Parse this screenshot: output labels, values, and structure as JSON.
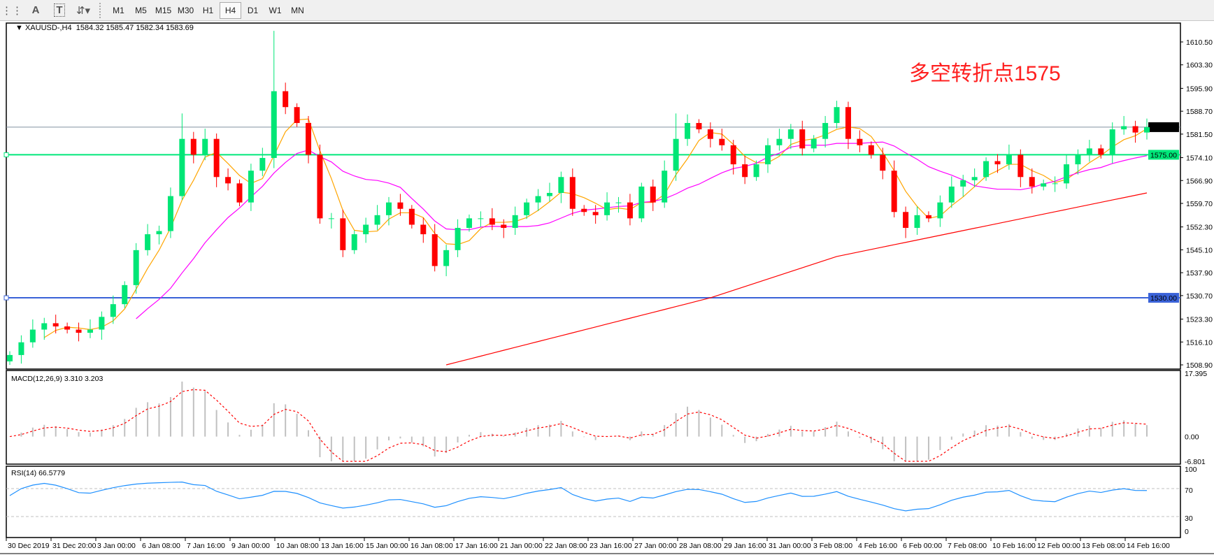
{
  "toolbar": {
    "icons": [
      "grid-icon",
      "text-icon",
      "text-label-icon",
      "arrows-icon"
    ],
    "timeframes": [
      "M1",
      "M5",
      "M15",
      "M30",
      "H1",
      "H4",
      "D1",
      "W1",
      "MN"
    ],
    "active_timeframe": "H4"
  },
  "header": {
    "symbol": "XAUUSD-,H4",
    "ohlc": "1584.32 1585.47 1582.34 1583.69"
  },
  "annotation": "多空转折点1575",
  "colors": {
    "bull": "#00e676",
    "bear": "#ff0000",
    "ma_fast": "#ffa500",
    "ma_mid": "#ff00ff",
    "ma_slow": "#ff0000",
    "level_green": "#00e87a",
    "level_blue": "#3a62d8",
    "current_price": "#8090a0"
  },
  "price_axis": {
    "ylim": [
      1508.9,
      1610.5
    ],
    "ticks": [
      "1610.50",
      "1603.30",
      "1595.90",
      "1588.70",
      "1581.50",
      "1574.10",
      "1566.90",
      "1559.70",
      "1552.30",
      "1545.10",
      "1537.90",
      "1530.70",
      "1523.30",
      "1516.10",
      "1508.90"
    ],
    "current_price": "1583.69",
    "levels": [
      {
        "value": "1575.00",
        "color": "#00e87a"
      },
      {
        "value": "1530.00",
        "color": "#3a62d8"
      }
    ]
  },
  "time_axis": [
    "30 Dec 2019",
    "31 Dec 20:00",
    "3 Jan 00:00",
    "6 Jan 08:00",
    "7 Jan 16:00",
    "9 Jan 00:00",
    "10 Jan 08:00",
    "13 Jan 16:00",
    "15 Jan 00:00",
    "16 Jan 08:00",
    "17 Jan 16:00",
    "21 Jan 00:00",
    "22 Jan 08:00",
    "23 Jan 16:00",
    "27 Jan 00:00",
    "28 Jan 08:00",
    "29 Jan 16:00",
    "31 Jan 00:00",
    "3 Feb 08:00",
    "4 Feb 16:00",
    "6 Feb 00:00",
    "7 Feb 08:00",
    "10 Feb 16:00",
    "12 Feb 00:00",
    "13 Feb 08:00",
    "14 Feb 16:00"
  ],
  "macd": {
    "label": "MACD(12,26,9) 3.310 3.203",
    "ticks": [
      "17.395",
      "0.00",
      "-6.801"
    ],
    "ylim": [
      -6.801,
      17.395
    ]
  },
  "rsi": {
    "label": "RSI(14) 66.5779",
    "ticks": [
      "100",
      "70",
      "30",
      "0"
    ],
    "levels": [
      70,
      30
    ]
  },
  "chart_data": {
    "type": "candlestick",
    "closes": [
      1512,
      1516,
      1520,
      1522,
      1521,
      1520,
      1519,
      1520,
      1524,
      1528,
      1534,
      1545,
      1550,
      1551,
      1562,
      1580,
      1575,
      1580,
      1568,
      1566,
      1560,
      1570,
      1574,
      1595,
      1590,
      1585,
      1575,
      1555,
      1555,
      1545,
      1550,
      1553,
      1556,
      1560,
      1558,
      1553,
      1550,
      1540,
      1545,
      1552,
      1555,
      1555,
      1553,
      1552,
      1556,
      1560,
      1562,
      1563,
      1568,
      1558,
      1557,
      1556,
      1560,
      1560,
      1555,
      1565,
      1560,
      1570,
      1580,
      1585,
      1583,
      1580,
      1578,
      1572,
      1568,
      1572,
      1578,
      1580,
      1583,
      1577,
      1580,
      1585,
      1590,
      1580,
      1578,
      1575,
      1570,
      1557,
      1552,
      1556,
      1555,
      1560,
      1565,
      1567,
      1568,
      1573,
      1572,
      1575,
      1568,
      1565,
      1566,
      1566,
      1572,
      1575,
      1577,
      1575,
      1583,
      1584,
      1582,
      1583.69
    ],
    "wick_highs": {
      "15": 1588,
      "23": 1614,
      "58": 1588,
      "72": 1592
    },
    "slow_ma_points": [
      [
        38,
        1508.9
      ],
      [
        61,
        1530
      ],
      [
        72,
        1543
      ],
      [
        99,
        1563
      ]
    ]
  }
}
